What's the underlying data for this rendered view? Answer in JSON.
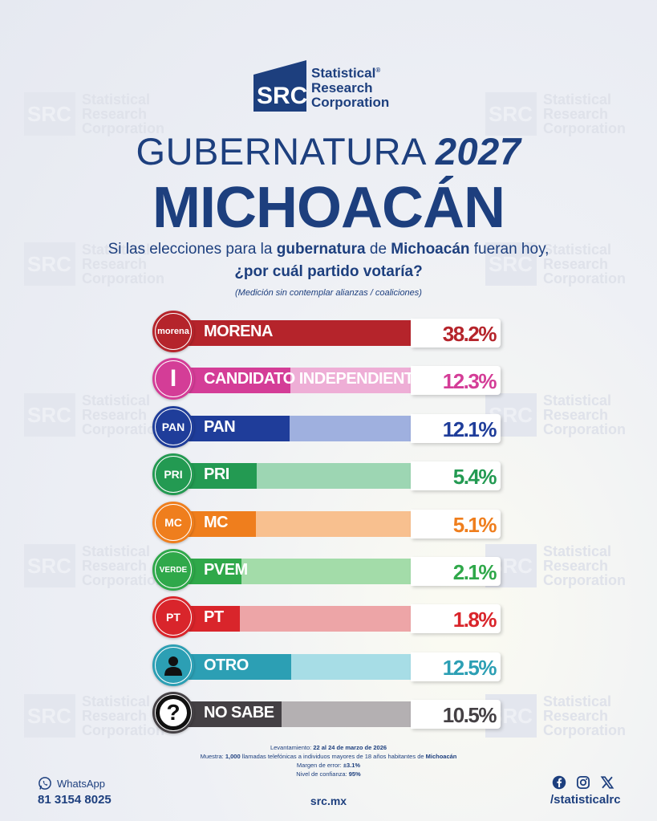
{
  "brand": {
    "logo_mark": "SRC",
    "name_line1": "Statistical",
    "name_line2": "Research",
    "name_line3": "Corporation"
  },
  "title": {
    "line1_regular": "GUBERNATURA",
    "line1_bold": "2027",
    "line2": "MICHOACÁN"
  },
  "question": {
    "part1": "Si las elecciones para la ",
    "part1_bold": "gubernatura",
    "part2": " de ",
    "part2_bold": "Michoacán",
    "part3": " fueran hoy,",
    "line2": "¿por cuál partido votaría?",
    "note": "(Medición sin contemplar alianzas / coaliciones)"
  },
  "chart_data": {
    "type": "bar",
    "categories": [
      "MORENA",
      "CANDIDATO INDEPENDIENTE",
      "PAN",
      "PRI",
      "MC",
      "PVEM",
      "PT",
      "OTRO",
      "NO SABE"
    ],
    "values": [
      38.2,
      12.3,
      12.1,
      5.4,
      5.1,
      2.1,
      1.8,
      12.5,
      10.5
    ],
    "labels": [
      "38.2%",
      "12.3%",
      "12.1%",
      "5.4%",
      "5.1%",
      "2.1%",
      "1.8%",
      "12.5%",
      "10.5%"
    ],
    "colors": [
      "#b5242b",
      "#d43d97",
      "#1f3d9a",
      "#239a52",
      "#ef7e1d",
      "#2fa84a",
      "#d9252b",
      "#2c9fb4",
      "#444044"
    ],
    "track_colors": [
      "#e6a8ab",
      "#eeaed6",
      "#9fb0df",
      "#9dd6b3",
      "#f8c08f",
      "#a3dca9",
      "#eda5a7",
      "#a7dde6",
      "#b4b0b2"
    ],
    "logo_text": [
      "morena",
      "I",
      "PAN",
      "PRI",
      "MC",
      "VERDE",
      "PT",
      "",
      "?"
    ],
    "title": "GUBERNATURA 2027 MICHOACÁN",
    "xlabel": "",
    "ylabel": "",
    "xlim": [
      0,
      40
    ]
  },
  "footer": {
    "levantamiento_label": "Levantamiento: ",
    "levantamiento": "22 al 24 de marzo de 2026",
    "muestra_label": "Muestra: ",
    "muestra_n": "1,000",
    "muestra_text": " llamadas telefónicas a individuos mayores de 18 años habitantes de ",
    "muestra_place": "Michoacán",
    "margen_label": "Margen de error: ",
    "margen": "±3.1%",
    "nivel_label": "Nivel de confianza: ",
    "nivel": "95%",
    "whatsapp_label": "WhatsApp",
    "whatsapp_number": "81 3154 8025",
    "site": "src.mx",
    "handle": "/statisticalrc",
    "icons": [
      "whatsapp-icon",
      "facebook-icon",
      "instagram-icon",
      "x-icon"
    ]
  }
}
